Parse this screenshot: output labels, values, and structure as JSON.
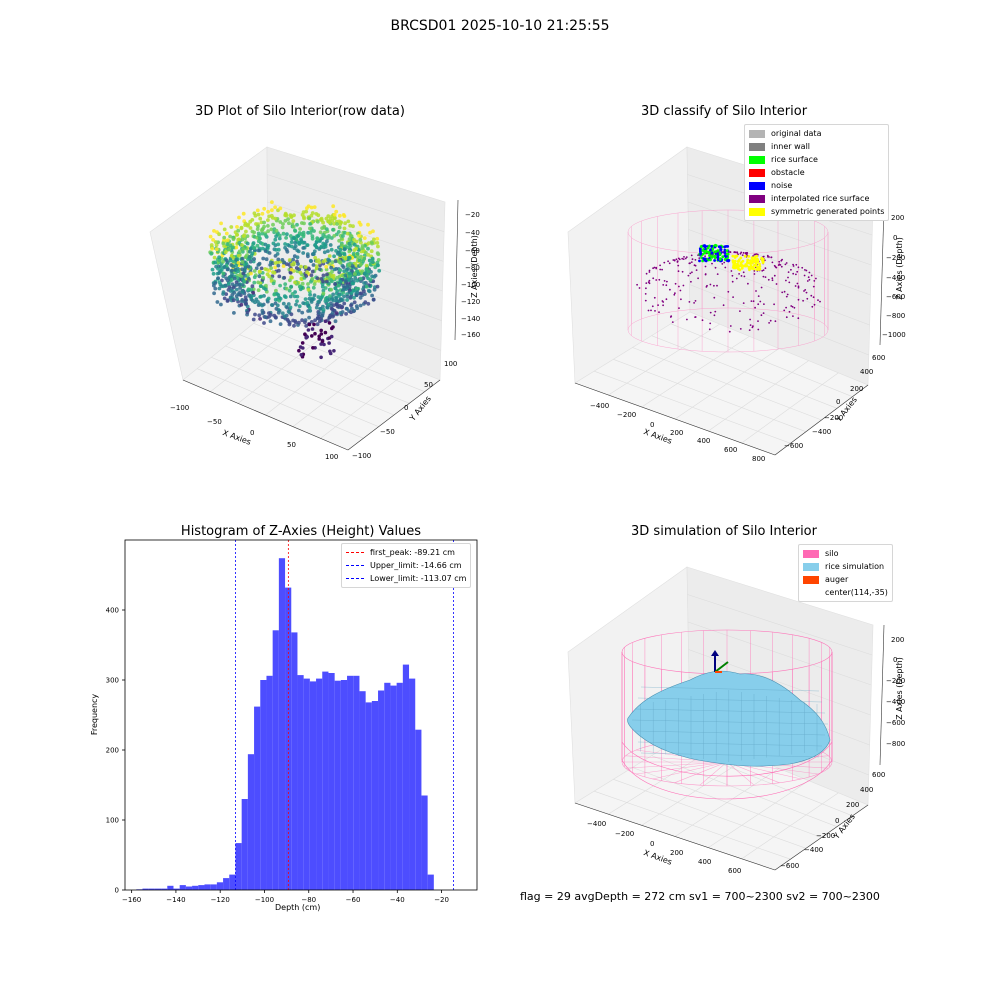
{
  "suptitle": "BRCSD01 2025-10-10 21:25:55",
  "colors": {
    "hist_bar": "#4d4dff",
    "peak_line": "#ff0000",
    "limit_line": "#0000ff",
    "silo_wire": "#ff69b4",
    "rice_surface": "#87ceeb"
  },
  "plot1": {
    "title": "3D Plot of Silo Interior(row data)",
    "xlabel": "X Axies",
    "ylabel": "Y Axies",
    "zlabel": "Z Axies (Depth)",
    "xticks": [
      "−100",
      "−50",
      "0",
      "50",
      "100"
    ],
    "yticks": [
      "−100",
      "−50",
      "0",
      "50",
      "100"
    ],
    "zticks": [
      "−20",
      "−40",
      "−60",
      "−80",
      "−100",
      "−120",
      "−140",
      "−160"
    ]
  },
  "plot2": {
    "title": "3D classify of Silo Interior",
    "xlabel": "X Axies",
    "ylabel": "Y Axies",
    "zlabel": "Z Axies (Depth)",
    "xticks": [
      "−400",
      "−200",
      "0",
      "200",
      "400",
      "600",
      "800"
    ],
    "yticks": [
      "−600",
      "−400",
      "−200",
      "0",
      "200",
      "400",
      "600"
    ],
    "zticks": [
      "200",
      "0",
      "−200",
      "−400",
      "−600",
      "−800",
      "−1000"
    ],
    "legend": [
      {
        "label": "original data",
        "color": "#b4b4b4"
      },
      {
        "label": "inner wall",
        "color": "#808080"
      },
      {
        "label": "rice surface",
        "color": "#00ff00"
      },
      {
        "label": "obstacle",
        "color": "#ff0000"
      },
      {
        "label": "noise",
        "color": "#0000ff"
      },
      {
        "label": "interpolated rice surface",
        "color": "#800080"
      },
      {
        "label": "symmetric generated points",
        "color": "#ffff00"
      }
    ]
  },
  "histogram": {
    "title": "Histogram of Z-Axies (Height) Values",
    "legend_peak": "first_peak: -89.21 cm",
    "legend_upper": "Upper_limit: -14.66 cm",
    "legend_lower": "Lower_limit: -113.07 cm"
  },
  "plot4": {
    "title": "3D simulation of Silo Interior",
    "xlabel": "X Axies",
    "ylabel": "Y Axies",
    "zlabel": "Z Axies (Depth)",
    "xticks": [
      "−400",
      "−200",
      "0",
      "200",
      "400",
      "600"
    ],
    "yticks": [
      "−600",
      "−400",
      "−200",
      "0",
      "200",
      "400",
      "600"
    ],
    "zticks": [
      "200",
      "0",
      "−200",
      "−400",
      "−600",
      "−800"
    ],
    "legend": [
      {
        "label": "silo",
        "color": "#ff69b4"
      },
      {
        "label": "rice simulation",
        "color": "#87ceeb"
      },
      {
        "label": "auger",
        "color": "#ff4500"
      },
      {
        "label": "center(114,-35)",
        "color": ""
      }
    ]
  },
  "footer": "flag = 29  avgDepth = 272 cm  sv1 = 700~2300  sv2 = 700~2300",
  "chart_data": {
    "type": "bar",
    "title": "Histogram of Z-Axies (Height) Values",
    "xlabel": "Depth (cm)",
    "ylabel": "Frequency",
    "xlim": [
      -163,
      -4
    ],
    "ylim": [
      0,
      500
    ],
    "bin_width": 2.8,
    "bin_start": -157.9,
    "xticks": [
      -160,
      -140,
      -120,
      -100,
      -80,
      -60,
      -40,
      -20
    ],
    "xtick_labels": [
      "−160",
      "−140",
      "−120",
      "−100",
      "−80",
      "−60",
      "−40",
      "−20"
    ],
    "yticks": [
      0,
      100,
      200,
      300,
      400
    ],
    "values": [
      1,
      2,
      2,
      2,
      2,
      6,
      2,
      7,
      5,
      6,
      7,
      8,
      8,
      11,
      17,
      22,
      67,
      130,
      194,
      262,
      300,
      306,
      371,
      474,
      432,
      368,
      307,
      302,
      298,
      302,
      312,
      310,
      299,
      300,
      306,
      306,
      284,
      268,
      270,
      285,
      296,
      292,
      296,
      322,
      302,
      229,
      135,
      22
    ],
    "vlines": [
      {
        "name": "first_peak",
        "x": -89.21,
        "color": "#ff0000"
      },
      {
        "name": "Upper_limit",
        "x": -14.66,
        "color": "#0000ff"
      },
      {
        "name": "Lower_limit",
        "x": -113.07,
        "color": "#0000ff"
      }
    ]
  }
}
